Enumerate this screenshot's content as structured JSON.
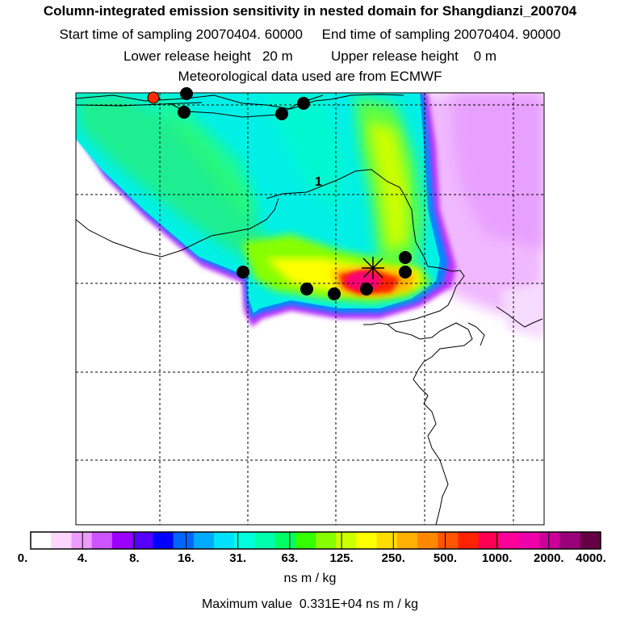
{
  "header": {
    "title": "Column-integrated emission sensitivity in nested domain for Shangdianzi_200704",
    "line2": "Start time of sampling 20070404. 60000     End time of sampling 20070404. 90000",
    "line3": "Lower release height   20 m          Upper release height    0 m",
    "line4": "Meteorological data used are from ECMWF"
  },
  "map": {
    "contour_label": "1",
    "release_marker": "star-cross",
    "station_markers": "black-dots",
    "origin_marker_color": "#ff2a00"
  },
  "colorbar": {
    "tick_labels": [
      "0.",
      "4.",
      "8.",
      "16.",
      "31.",
      "63.",
      "125.",
      "250.",
      "500.",
      "1000.",
      "2000.",
      "4000."
    ],
    "colors": [
      "#ffffff",
      "#ffd6ff",
      "#ee9bff",
      "#cc55ff",
      "#9b00ff",
      "#5500ff",
      "#0000ff",
      "#0066ff",
      "#00aaff",
      "#00e0ff",
      "#00ffdd",
      "#00ffaa",
      "#00ff66",
      "#33ff00",
      "#88ff00",
      "#ccff00",
      "#ffff00",
      "#ffdd00",
      "#ffb000",
      "#ff8800",
      "#ff5500",
      "#ff2200",
      "#ff0055",
      "#ff0099",
      "#ee00aa",
      "#cc0099",
      "#990077",
      "#660044"
    ],
    "units": "ns m / kg"
  },
  "footer": {
    "maximum_value": "Maximum value  0.331E+04 ns m / kg"
  }
}
